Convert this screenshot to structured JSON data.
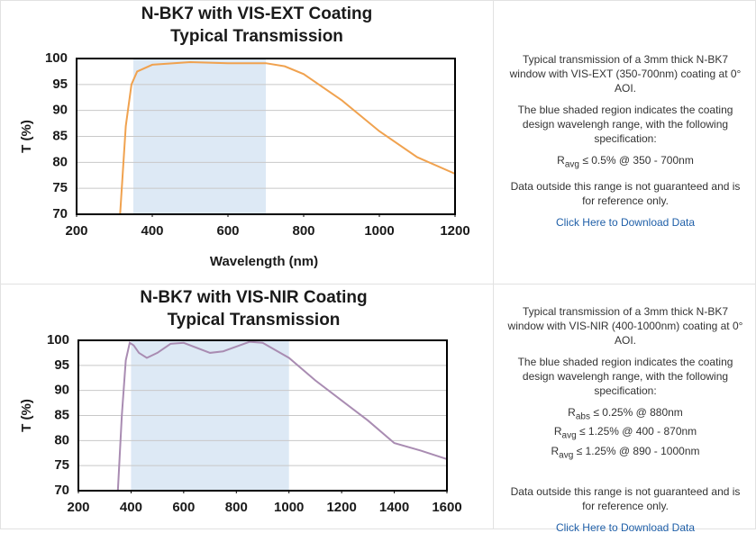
{
  "chart_data": [
    {
      "type": "line",
      "title": "N-BK7 with VIS-EXT Coating",
      "subtitle": "Typical Transmission",
      "x_label": "Wavelength (nm)",
      "y_label": "T (%)",
      "xlim": [
        200,
        1200
      ],
      "xticks": [
        200,
        400,
        600,
        800,
        1000,
        1200
      ],
      "ylim": [
        70,
        100
      ],
      "yticks": [
        70,
        75,
        80,
        85,
        90,
        95,
        100
      ],
      "grid": true,
      "shade": {
        "range": [
          350,
          700
        ],
        "color": "#dde9f5"
      },
      "x": [
        315,
        330,
        345,
        360,
        400,
        500,
        600,
        700,
        750,
        800,
        900,
        1000,
        1100,
        1200
      ],
      "series": [
        {
          "color": "#f0a24f",
          "values": [
            70,
            87,
            95,
            97.5,
            98.8,
            99.3,
            99.1,
            99.1,
            98.5,
            97,
            92,
            86,
            81,
            77.8
          ]
        }
      ]
    },
    {
      "type": "line",
      "title": "N-BK7 with VIS-NIR Coating",
      "subtitle": "Typical Transmission",
      "y_label": "T (%)",
      "xlim": [
        200,
        1600
      ],
      "xticks": [
        200,
        400,
        600,
        800,
        1000,
        1200,
        1400,
        1600
      ],
      "ylim": [
        70,
        100
      ],
      "yticks": [
        70,
        75,
        80,
        85,
        90,
        95,
        100
      ],
      "grid": true,
      "shade": {
        "range": [
          400,
          1000
        ],
        "color": "#dde9f5"
      },
      "x": [
        350,
        365,
        380,
        395,
        410,
        430,
        460,
        500,
        550,
        600,
        700,
        750,
        850,
        900,
        1000,
        1100,
        1200,
        1300,
        1400,
        1500,
        1600
      ],
      "series": [
        {
          "color": "#a98cb2",
          "values": [
            70,
            85,
            96,
            99.5,
            99,
            97.5,
            96.5,
            97.5,
            99.3,
            99.5,
            97.5,
            97.8,
            99.7,
            99.5,
            96.5,
            92,
            88,
            84,
            79.5,
            78,
            76.3
          ]
        }
      ]
    }
  ],
  "panels": [
    {
      "intro": "Typical transmission of a 3mm thick N-BK7 window with VIS-EXT (350-700nm) coating at 0° AOI.",
      "shade_note": "The blue shaded region indicates the coating design wavelengh range, with the following specification:",
      "specs": [
        {
          "symbol": "R",
          "sub": "avg",
          "text": "≤ 0.5% @ 350 - 700nm"
        }
      ],
      "footnote": "Data outside this range is not guaranteed and is for reference only.",
      "link": "Click Here to Download Data"
    },
    {
      "intro": "Typical transmission of a 3mm thick N-BK7 window with VIS-NIR (400-1000nm) coating at 0° AOI.",
      "shade_note": "The blue shaded region indicates the coating design wavelengh range, with the following specification:",
      "specs": [
        {
          "symbol": "R",
          "sub": "abs",
          "text": "≤ 0.25% @ 880nm"
        },
        {
          "symbol": "R",
          "sub": "avg",
          "text": "≤ 1.25% @ 400 - 870nm"
        },
        {
          "symbol": "R",
          "sub": "avg",
          "text": "≤ 1.25% @ 890 - 1000nm"
        }
      ],
      "footnote": "Data outside this range is not guaranteed and is for reference only.",
      "link": "Click Here to Download Data"
    }
  ]
}
